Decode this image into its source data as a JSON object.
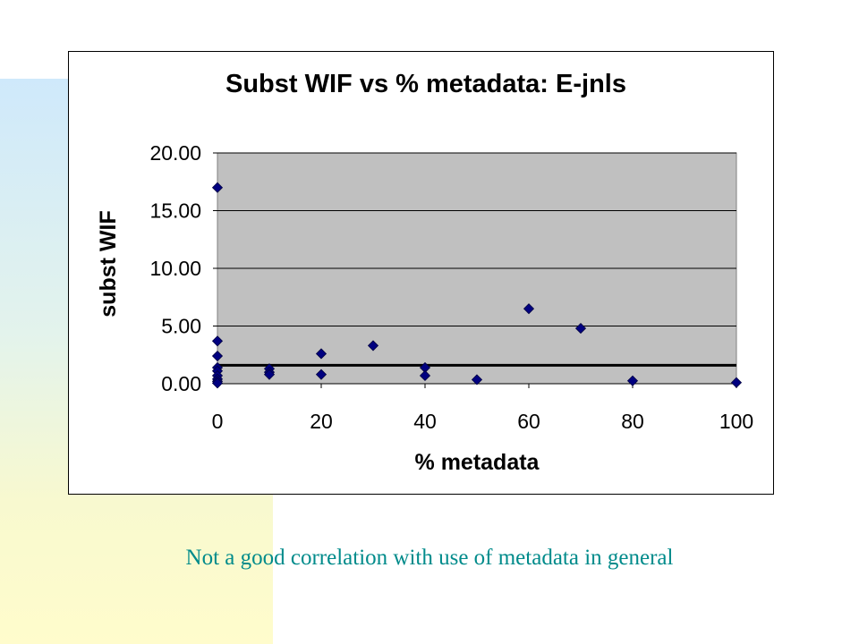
{
  "caption": "Not a good correlation with use of metadata in general",
  "chart_data": {
    "type": "scatter",
    "title": "Subst WIF vs % metadata: E-jnls",
    "xlabel": "% metadata",
    "ylabel": "subst WIF",
    "xlim": [
      0,
      100
    ],
    "ylim": [
      0,
      20
    ],
    "xticks": [
      "0",
      "20",
      "40",
      "60",
      "80",
      "100"
    ],
    "yticks": [
      "0.00",
      "5.00",
      "10.00",
      "15.00",
      "20.00"
    ],
    "grid": true,
    "legend": "none",
    "colors": {
      "marker": "#000080",
      "plot_background": "#c0c0c0",
      "reference_line": "#000000"
    },
    "reference_line_y": 1.6,
    "points": [
      {
        "x": 0,
        "y": 17.0
      },
      {
        "x": 0,
        "y": 3.7
      },
      {
        "x": 0,
        "y": 2.4
      },
      {
        "x": 0,
        "y": 1.4
      },
      {
        "x": 0,
        "y": 1.1
      },
      {
        "x": 0,
        "y": 0.7
      },
      {
        "x": 0,
        "y": 0.4
      },
      {
        "x": 0,
        "y": 0.2
      },
      {
        "x": 0,
        "y": 0.05
      },
      {
        "x": 10,
        "y": 1.3
      },
      {
        "x": 10,
        "y": 1.0
      },
      {
        "x": 10,
        "y": 0.8
      },
      {
        "x": 20,
        "y": 2.6
      },
      {
        "x": 20,
        "y": 0.8
      },
      {
        "x": 30,
        "y": 3.3
      },
      {
        "x": 40,
        "y": 1.4
      },
      {
        "x": 40,
        "y": 0.7
      },
      {
        "x": 50,
        "y": 0.35
      },
      {
        "x": 60,
        "y": 6.5
      },
      {
        "x": 70,
        "y": 4.8
      },
      {
        "x": 80,
        "y": 0.25
      },
      {
        "x": 100,
        "y": 0.1
      }
    ]
  }
}
